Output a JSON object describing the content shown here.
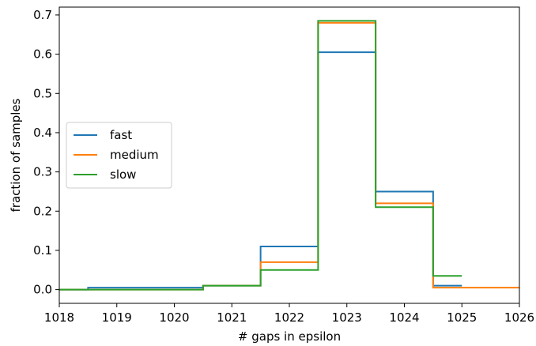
{
  "chart_data": {
    "type": "line",
    "title": "",
    "xlabel": "# gaps in epsilon",
    "ylabel": "fraction of samples",
    "xlim": [
      1018,
      1026
    ],
    "ylim": [
      -0.035,
      0.72
    ],
    "xticks": [
      1018,
      1019,
      1020,
      1021,
      1022,
      1023,
      1024,
      1025,
      1026
    ],
    "yticks": [
      0.0,
      0.1,
      0.2,
      0.3,
      0.4,
      0.5,
      0.6,
      0.7
    ],
    "ytick_labels": [
      "0.0",
      "0.1",
      "0.2",
      "0.3",
      "0.4",
      "0.5",
      "0.6",
      "0.7"
    ],
    "grid": false,
    "legend_position": "center-left",
    "step_style": "mid",
    "series": [
      {
        "name": "fast",
        "color": "#1f77b4",
        "x": [
          1018,
          1019,
          1020,
          1021,
          1022,
          1023,
          1024,
          1025
        ],
        "y": [
          0.0,
          0.005,
          0.005,
          0.01,
          0.11,
          0.605,
          0.25,
          0.01
        ]
      },
      {
        "name": "medium",
        "color": "#ff7f0e",
        "x": [
          1018,
          1019,
          1020,
          1021,
          1022,
          1023,
          1024,
          1025,
          1026
        ],
        "y": [
          0.0,
          0.0,
          0.0,
          0.01,
          0.07,
          0.68,
          0.22,
          0.005,
          0.005
        ]
      },
      {
        "name": "slow",
        "color": "#2ca02c",
        "x": [
          1018,
          1019,
          1020,
          1021,
          1022,
          1023,
          1024,
          1025
        ],
        "y": [
          0.0,
          0.0,
          0.0,
          0.01,
          0.05,
          0.685,
          0.21,
          0.035
        ]
      }
    ]
  }
}
